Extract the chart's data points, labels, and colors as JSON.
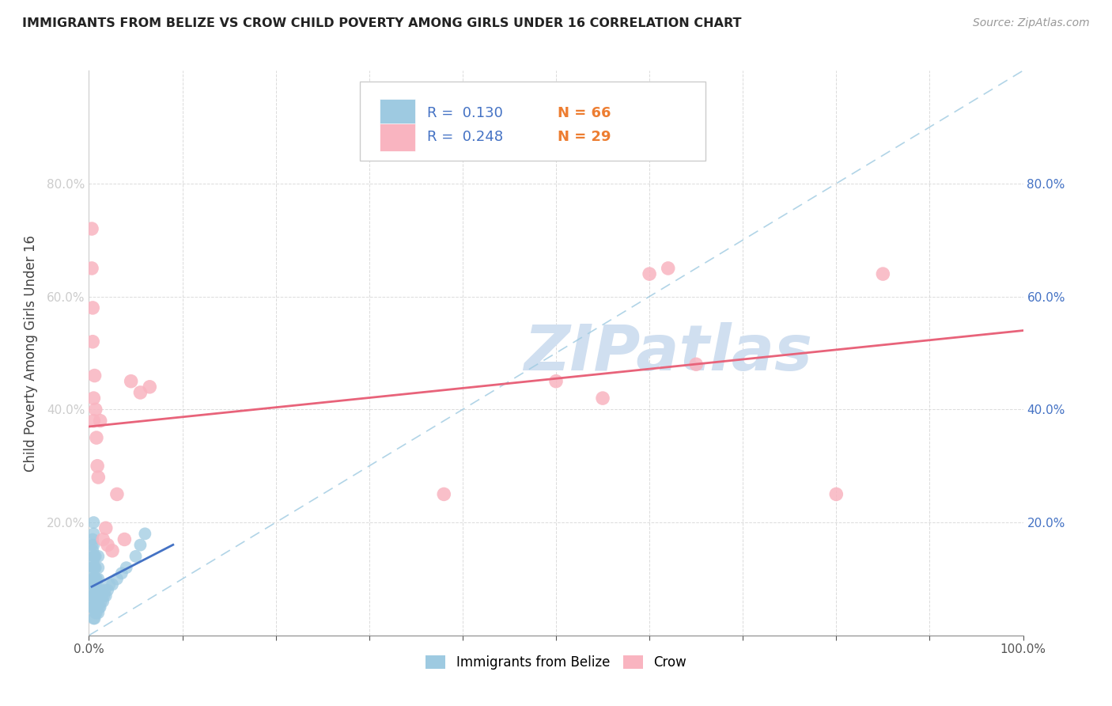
{
  "title": "IMMIGRANTS FROM BELIZE VS CROW CHILD POVERTY AMONG GIRLS UNDER 16 CORRELATION CHART",
  "source": "Source: ZipAtlas.com",
  "ylabel": "Child Poverty Among Girls Under 16",
  "xlim": [
    0,
    1.0
  ],
  "ylim": [
    0,
    1.0
  ],
  "xticks": [
    0,
    0.1,
    0.2,
    0.3,
    0.4,
    0.5,
    0.6,
    0.7,
    0.8,
    0.9,
    1.0
  ],
  "yticks": [
    0.0,
    0.2,
    0.4,
    0.6,
    0.8
  ],
  "xticklabels": [
    "0.0%",
    "",
    "",
    "",
    "",
    "",
    "",
    "",
    "",
    "",
    "100.0%"
  ],
  "yticklabels": [
    "",
    "20.0%",
    "40.0%",
    "60.0%",
    "80.0%"
  ],
  "legend_labels": [
    "Immigrants from Belize",
    "Crow"
  ],
  "R_belize": 0.13,
  "N_belize": 66,
  "R_crow": 0.248,
  "N_crow": 29,
  "color_belize": "#9ecae1",
  "color_crow": "#f9b4c0",
  "color_text_R_label": "#4472c4",
  "color_text_N_label": "#4472c4",
  "color_text_N_value": "#ed7d31",
  "regression_color_belize": "#4472c4",
  "regression_color_crow": "#e8637a",
  "diagonal_color": "#9ecae1",
  "background_color": "#ffffff",
  "watermark_text": "ZIPatlas",
  "watermark_color": "#d0dff0",
  "belize_x": [
    0.003,
    0.003,
    0.003,
    0.003,
    0.003,
    0.004,
    0.004,
    0.004,
    0.004,
    0.004,
    0.004,
    0.005,
    0.005,
    0.005,
    0.005,
    0.005,
    0.005,
    0.005,
    0.005,
    0.005,
    0.005,
    0.005,
    0.006,
    0.006,
    0.006,
    0.006,
    0.006,
    0.006,
    0.007,
    0.007,
    0.007,
    0.007,
    0.007,
    0.007,
    0.008,
    0.008,
    0.008,
    0.008,
    0.009,
    0.009,
    0.009,
    0.01,
    0.01,
    0.01,
    0.01,
    0.01,
    0.01,
    0.011,
    0.011,
    0.012,
    0.012,
    0.013,
    0.014,
    0.015,
    0.016,
    0.017,
    0.018,
    0.02,
    0.022,
    0.025,
    0.03,
    0.035,
    0.04,
    0.05,
    0.055,
    0.06
  ],
  "belize_y": [
    0.05,
    0.08,
    0.1,
    0.12,
    0.16,
    0.05,
    0.07,
    0.1,
    0.13,
    0.15,
    0.17,
    0.03,
    0.05,
    0.06,
    0.07,
    0.09,
    0.1,
    0.12,
    0.14,
    0.16,
    0.18,
    0.2,
    0.03,
    0.05,
    0.07,
    0.09,
    0.12,
    0.14,
    0.04,
    0.06,
    0.08,
    0.1,
    0.12,
    0.14,
    0.04,
    0.06,
    0.08,
    0.1,
    0.05,
    0.07,
    0.09,
    0.04,
    0.06,
    0.08,
    0.1,
    0.12,
    0.14,
    0.05,
    0.07,
    0.05,
    0.08,
    0.06,
    0.07,
    0.06,
    0.07,
    0.08,
    0.07,
    0.08,
    0.09,
    0.09,
    0.1,
    0.11,
    0.12,
    0.14,
    0.16,
    0.18
  ],
  "crow_x": [
    0.003,
    0.003,
    0.004,
    0.004,
    0.005,
    0.005,
    0.006,
    0.007,
    0.008,
    0.009,
    0.01,
    0.012,
    0.015,
    0.018,
    0.02,
    0.025,
    0.03,
    0.038,
    0.045,
    0.055,
    0.065,
    0.38,
    0.5,
    0.55,
    0.6,
    0.62,
    0.65,
    0.8,
    0.85
  ],
  "crow_y": [
    0.72,
    0.65,
    0.58,
    0.52,
    0.42,
    0.38,
    0.46,
    0.4,
    0.35,
    0.3,
    0.28,
    0.38,
    0.17,
    0.19,
    0.16,
    0.15,
    0.25,
    0.17,
    0.45,
    0.43,
    0.44,
    0.25,
    0.45,
    0.42,
    0.64,
    0.65,
    0.48,
    0.25,
    0.64
  ]
}
